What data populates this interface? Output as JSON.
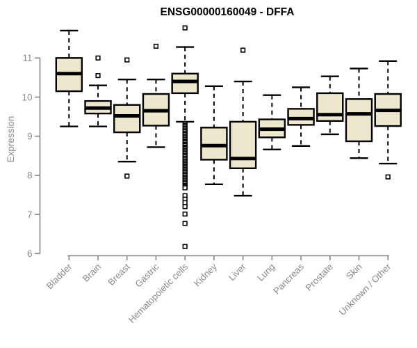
{
  "chart_data": {
    "type": "boxplot",
    "title": "ENSG00000160049 - DFFA",
    "xlabel": "",
    "ylabel": "Expression",
    "ylim": [
      6,
      11
    ],
    "yticks": [
      6,
      7,
      8,
      9,
      10,
      11
    ],
    "grid": false,
    "legend_position": "none",
    "categories": [
      "Bladder",
      "Brain",
      "Breast",
      "Gastric",
      "Hematopoietic cells",
      "Kidney",
      "Liver",
      "Lung",
      "Pancreas",
      "Prostate",
      "Skin",
      "Unknown / Other"
    ],
    "boxes": [
      {
        "category": "Bladder",
        "min": 9.25,
        "q1": 10.15,
        "median": 10.6,
        "q3": 11.0,
        "max": 11.7,
        "outliers": []
      },
      {
        "category": "Brain",
        "min": 9.25,
        "q1": 9.58,
        "median": 9.72,
        "q3": 9.9,
        "max": 10.3,
        "outliers": [
          10.55,
          11.0
        ]
      },
      {
        "category": "Breast",
        "min": 8.35,
        "q1": 9.1,
        "median": 9.52,
        "q3": 9.8,
        "max": 10.45,
        "outliers": [
          10.95,
          7.98
        ]
      },
      {
        "category": "Gastric",
        "min": 8.72,
        "q1": 9.27,
        "median": 9.65,
        "q3": 10.08,
        "max": 10.45,
        "outliers": [
          11.3
        ]
      },
      {
        "category": "Hematopoietic cells",
        "min": 9.37,
        "q1": 10.1,
        "median": 10.4,
        "q3": 10.6,
        "max": 11.28,
        "outliers": [
          11.77,
          9.32,
          9.28,
          9.25,
          9.21,
          9.18,
          9.14,
          9.11,
          9.07,
          9.04,
          9.0,
          8.97,
          8.93,
          8.9,
          8.86,
          8.83,
          8.79,
          8.76,
          8.72,
          8.69,
          8.65,
          8.62,
          8.58,
          8.55,
          8.51,
          8.48,
          8.44,
          8.41,
          8.37,
          8.34,
          8.3,
          8.27,
          8.23,
          8.2,
          8.16,
          8.13,
          8.09,
          8.06,
          8.02,
          7.99,
          7.95,
          7.92,
          7.88,
          7.85,
          7.81,
          7.78,
          7.74,
          7.71,
          7.68,
          7.48,
          7.39,
          7.3,
          7.2,
          7.01,
          6.77,
          6.18
        ]
      },
      {
        "category": "Kidney",
        "min": 7.77,
        "q1": 8.4,
        "median": 8.76,
        "q3": 9.22,
        "max": 10.28,
        "outliers": []
      },
      {
        "category": "Liver",
        "min": 7.48,
        "q1": 8.18,
        "median": 8.43,
        "q3": 9.37,
        "max": 10.4,
        "outliers": [
          11.2
        ]
      },
      {
        "category": "Lung",
        "min": 8.66,
        "q1": 8.97,
        "median": 9.18,
        "q3": 9.43,
        "max": 10.05,
        "outliers": []
      },
      {
        "category": "Pancreas",
        "min": 8.75,
        "q1": 9.29,
        "median": 9.45,
        "q3": 9.7,
        "max": 10.25,
        "outliers": []
      },
      {
        "category": "Prostate",
        "min": 9.05,
        "q1": 9.39,
        "median": 9.55,
        "q3": 10.1,
        "max": 10.53,
        "outliers": []
      },
      {
        "category": "Skin",
        "min": 8.44,
        "q1": 8.87,
        "median": 9.57,
        "q3": 9.95,
        "max": 10.73,
        "outliers": []
      },
      {
        "category": "Unknown / Other",
        "min": 8.3,
        "q1": 9.26,
        "median": 9.66,
        "q3": 10.08,
        "max": 10.92,
        "outliers": [
          7.96
        ]
      }
    ],
    "colors": {
      "box_fill": "#EDE7CE",
      "box_border": "#000000",
      "median": "#000000",
      "whisker": "#000000",
      "outlier_fill": "#ffffff",
      "outlier_border": "#000000",
      "axis": "#858585",
      "tick_label": "#8c8c8c",
      "title": "#000000"
    }
  }
}
